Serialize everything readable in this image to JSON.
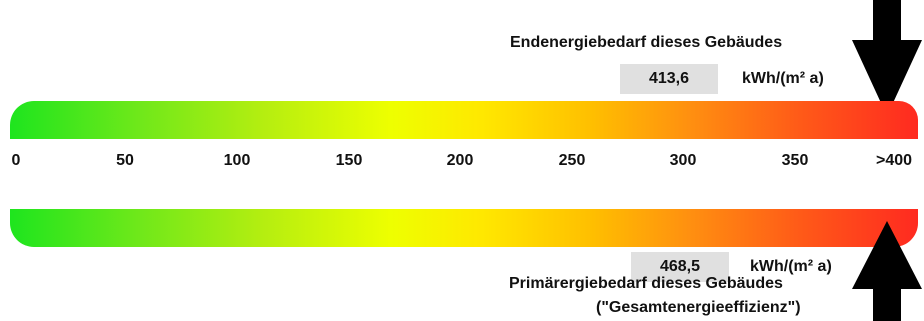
{
  "end_energy": {
    "heading": "Endenergiebedarf dieses Gebäudes",
    "value": "413,6",
    "unit": "kWh/(m² a)"
  },
  "primary_energy": {
    "heading_line1": "Primärergiebedarf dieses Gebäudes",
    "heading_line2": "(\"Gesamtenergieeffizienz\")",
    "value": "468,5",
    "unit": "kWh/(m² a)"
  },
  "scale": {
    "ticks": [
      "0",
      "50",
      "100",
      "150",
      "200",
      "250",
      "300",
      "350",
      ">400"
    ],
    "colors": {
      "low": "#1ee51e",
      "mid": "#eeff00",
      "high": "#ff2a20"
    }
  },
  "icons": {
    "top_marker": "arrow-down-icon",
    "bottom_marker": "arrow-up-icon"
  }
}
